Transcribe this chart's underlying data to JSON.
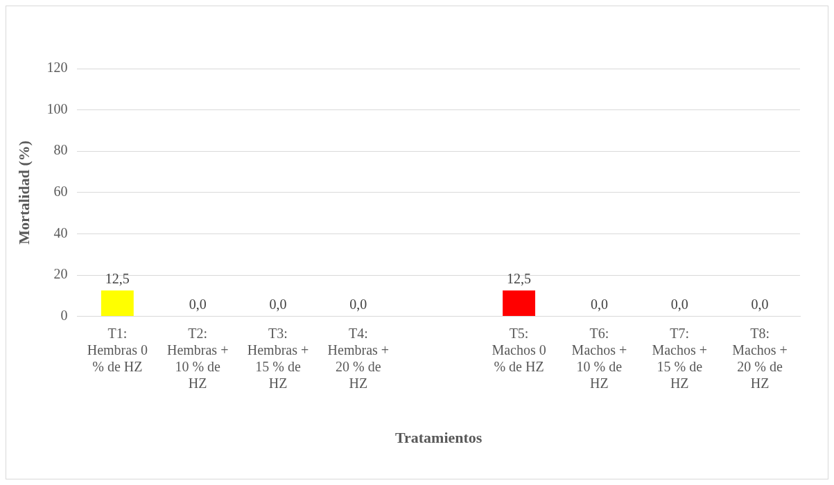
{
  "chart_data": {
    "type": "bar",
    "xlabel": "Tratamientos",
    "ylabel": "Mortalidad (%)",
    "categories": [
      "T1: Hembras 0 % de HZ",
      "T2: Hembras + 10 % de HZ",
      "T3: Hembras + 15 % de HZ",
      "T4: Hembras + 20 % de HZ",
      null,
      "T5: Machos 0 % de HZ",
      "T6: Machos + 10 % de HZ",
      "T7: Machos + 15 % de HZ",
      "T8: Machos + 20 % de HZ"
    ],
    "values": [
      12.5,
      0,
      0,
      0,
      null,
      12.5,
      0,
      0,
      0
    ],
    "colors": [
      "#ffff00",
      "#2f5597",
      "#2f5597",
      "#2f5597",
      "#2f5597",
      "#ff0000",
      "#2f5597",
      "#2f5597",
      "#2f5597"
    ],
    "value_labels": [
      "12,5",
      "0,0",
      "0,0",
      "0,0",
      null,
      "12,5",
      "0,0",
      "0,0",
      "0,0"
    ],
    "ylim": [
      0,
      120
    ],
    "yticks": [
      0,
      20,
      40,
      60,
      80,
      100,
      120
    ],
    "grid": "y",
    "legend": false
  }
}
